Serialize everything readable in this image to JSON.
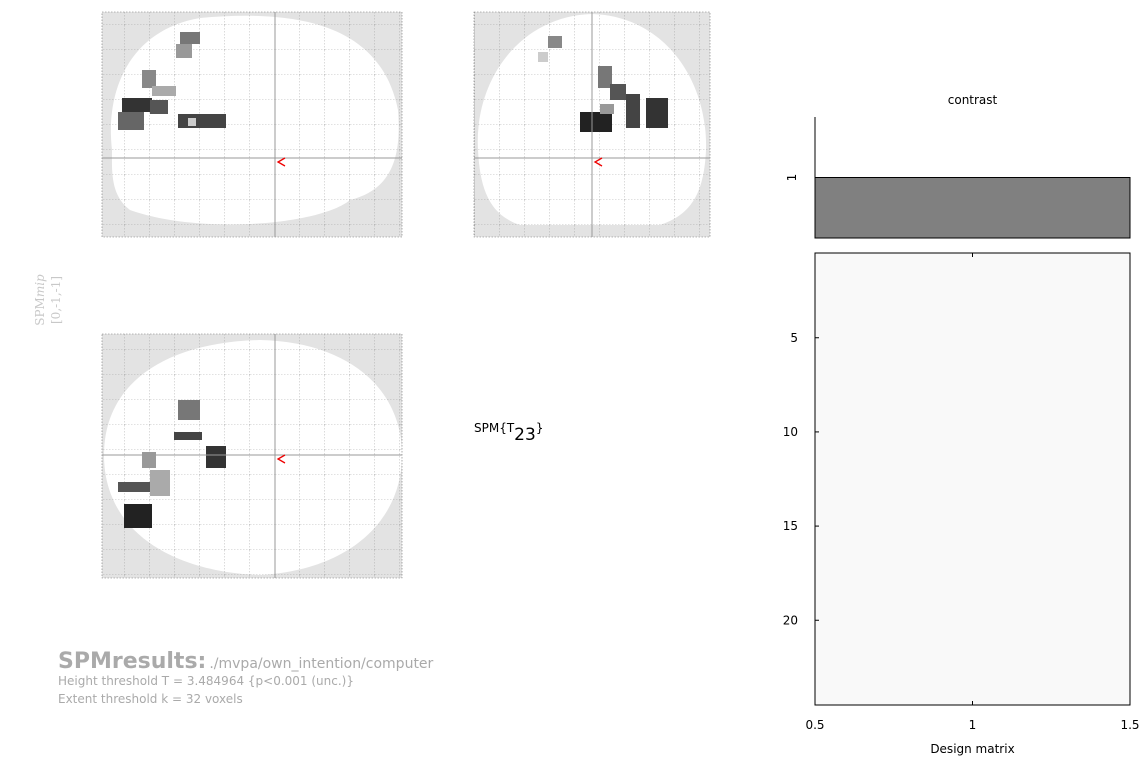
{
  "mip_label": {
    "title": "SPM",
    "title_italic": "mip",
    "coords": "[0,-1,-1]"
  },
  "statistic": {
    "prefix": "SPM{T",
    "df": "23",
    "suffix": "}"
  },
  "results": {
    "title": "SPMresults:",
    "path": "./mvpa/own_intention/computer",
    "height_threshold": "Height threshold T = 3.484964  {p<0.001 (unc.)}",
    "extent_threshold": "Extent threshold k = 32 voxels"
  },
  "chart_data": [
    {
      "type": "bar",
      "title": "contrast",
      "values": [
        1
      ],
      "ylim": [
        0,
        2
      ],
      "yticks": [
        1
      ],
      "xlim": [
        0.5,
        1.5
      ],
      "color": "#808080"
    },
    {
      "type": "matrix",
      "xlabel": "Design matrix",
      "xlim": [
        0.5,
        1.5
      ],
      "ylim": [
        0.5,
        24.5
      ],
      "xticks": [
        0.5,
        1,
        1.5
      ],
      "yticks": [
        5,
        10,
        15,
        20
      ],
      "color": "#f9f9f9"
    }
  ]
}
